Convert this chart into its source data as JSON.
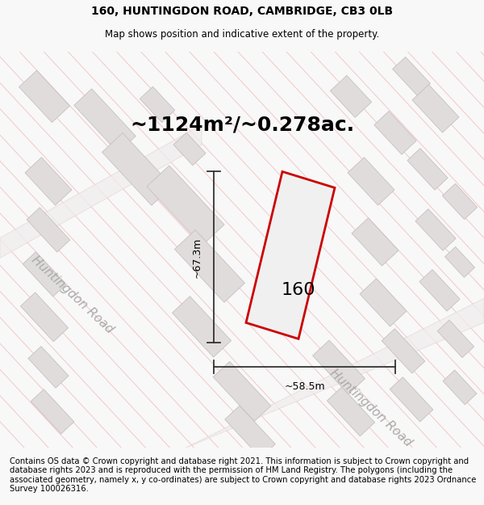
{
  "title_line1": "160, HUNTINGDON ROAD, CAMBRIDGE, CB3 0LB",
  "title_line2": "Map shows position and indicative extent of the property.",
  "area_text": "~1124m²/~0.278ac.",
  "property_number": "160",
  "dim_vertical": "~67.3m",
  "dim_horizontal": "~58.5m",
  "road_label_nw": "Huntingdon Road",
  "road_label_se": "Huntingdon Road",
  "footer_text": "Contains OS data © Crown copyright and database right 2021. This information is subject to Crown copyright and database rights 2023 and is reproduced with the permission of HM Land Registry. The polygons (including the associated geometry, namely x, y co-ordinates) are subject to Crown copyright and database rights 2023 Ordnance Survey 100026316.",
  "bg_color": "#f8f8f8",
  "map_bg": "#f8f8f8",
  "street_line_color": "#f0a0a0",
  "building_fill": "#e0dcdc",
  "building_edge": "#c8c0c0",
  "property_fill": "#f0f0f0",
  "property_color": "#cc0000",
  "dim_line_color": "#333333",
  "road_label_color": "#aaaaaa",
  "title_fontsize": 10,
  "subtitle_fontsize": 8.5,
  "area_fontsize": 18,
  "property_num_fontsize": 16,
  "dim_fontsize": 9,
  "road_label_fontsize": 11,
  "footer_fontsize": 7.2
}
